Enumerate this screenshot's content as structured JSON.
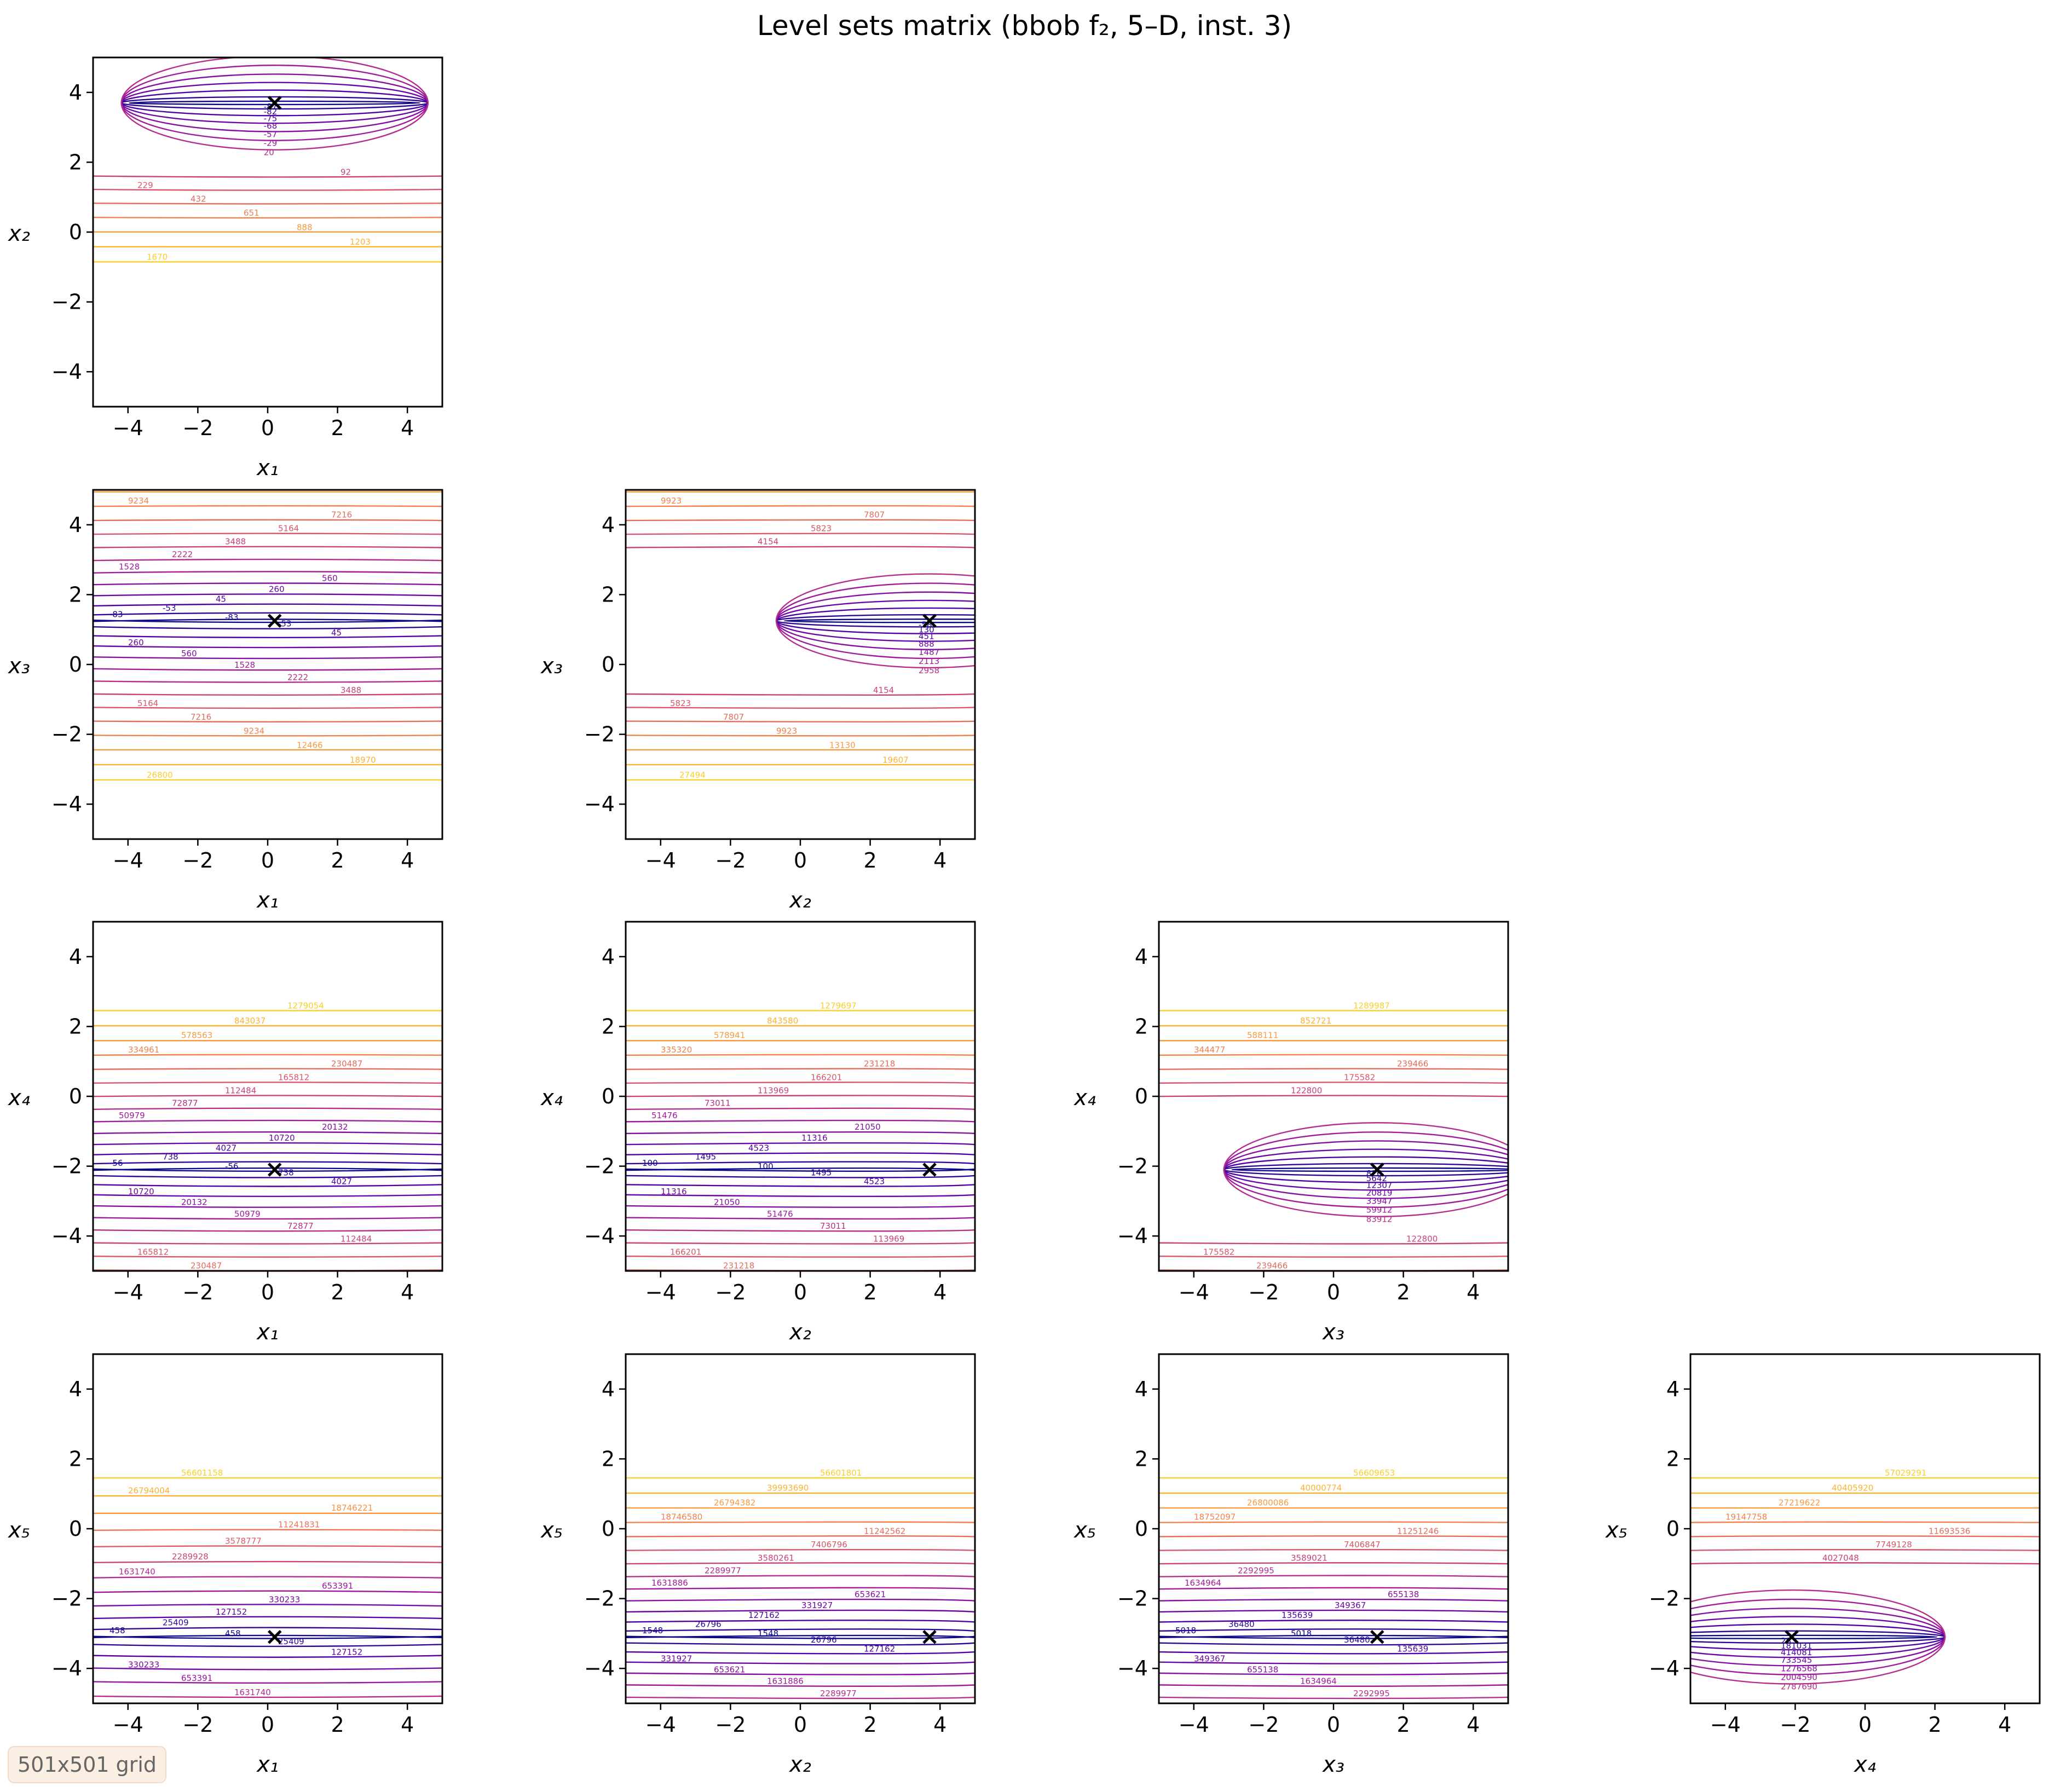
{
  "title": "Level sets matrix (bbob f₂, 5–D, inst. 3)",
  "badge": "501x501 grid",
  "colors": {
    "cmap": [
      "#0d0887",
      "#5c01a6",
      "#9c179e",
      "#cc4778",
      "#ed7953",
      "#fdb42f",
      "#f0f921"
    ],
    "optimum_marker": "#000000"
  },
  "chart_data": [
    {
      "type": "contour",
      "row": 0,
      "col": 0,
      "xlabel": "x1",
      "ylabel": "x2",
      "xlim": [
        -5,
        5
      ],
      "ylim": [
        -5,
        5
      ],
      "xticks": [
        -4,
        -2,
        0,
        2,
        4
      ],
      "yticks": [
        -4,
        -2,
        0,
        2,
        4
      ],
      "optimum": [
        0.2,
        3.7
      ],
      "contours": "ellipses",
      "levels": [
        -87,
        -82,
        -75,
        -68,
        -57,
        -29,
        20,
        92,
        229,
        432,
        651,
        888,
        1203,
        1670
      ]
    },
    {
      "type": "contour",
      "row": 1,
      "col": 0,
      "xlabel": "x1",
      "ylabel": "x3",
      "xlim": [
        -5,
        5
      ],
      "ylim": [
        -5,
        5
      ],
      "xticks": [
        -4,
        -2,
        0,
        2,
        4
      ],
      "yticks": [
        -4,
        -2,
        0,
        2,
        4
      ],
      "optimum": [
        0.2,
        1.25
      ],
      "contours": "lines",
      "levels": [
        -83,
        -53,
        45,
        260,
        560,
        1528,
        2222,
        3488,
        5164,
        7216,
        9234,
        12466,
        18970,
        26800
      ]
    },
    {
      "type": "contour",
      "row": 1,
      "col": 1,
      "xlabel": "x2",
      "ylabel": "x3",
      "xlim": [
        -5,
        5
      ],
      "ylim": [
        -5,
        5
      ],
      "xticks": [
        -4,
        -2,
        0,
        2,
        4
      ],
      "yticks": [
        -4,
        -2,
        0,
        2,
        4
      ],
      "optimum": [
        3.7,
        1.25
      ],
      "contours": "ellipses",
      "levels": [
        -58,
        130,
        451,
        888,
        1487,
        2113,
        2958,
        4154,
        5823,
        7807,
        9923,
        13130,
        19607,
        27494
      ]
    },
    {
      "type": "contour",
      "row": 2,
      "col": 0,
      "xlabel": "x1",
      "ylabel": "x4",
      "xlim": [
        -5,
        5
      ],
      "ylim": [
        -5,
        5
      ],
      "xticks": [
        -4,
        -2,
        0,
        2,
        4
      ],
      "yticks": [
        -4,
        -2,
        0,
        2,
        4
      ],
      "optimum": [
        0.2,
        -2.1
      ],
      "contours": "lines",
      "levels": [
        -56,
        738,
        4027,
        10720,
        20132,
        50979,
        72877,
        112484,
        165812,
        230487,
        334961,
        578563,
        843037,
        1279054
      ]
    },
    {
      "type": "contour",
      "row": 2,
      "col": 1,
      "xlabel": "x2",
      "ylabel": "x4",
      "xlim": [
        -5,
        5
      ],
      "ylim": [
        -5,
        5
      ],
      "xticks": [
        -4,
        -2,
        0,
        2,
        4
      ],
      "yticks": [
        -4,
        -2,
        0,
        2,
        4
      ],
      "optimum": [
        3.7,
        -2.1
      ],
      "contours": "lines",
      "levels": [
        100,
        1495,
        4523,
        11316,
        21050,
        51476,
        73011,
        113969,
        166201,
        231218,
        335320,
        578941,
        843580,
        1279697
      ]
    },
    {
      "type": "contour",
      "row": 2,
      "col": 2,
      "xlabel": "x3",
      "ylabel": "x4",
      "xlim": [
        -5,
        5
      ],
      "ylim": [
        -5,
        5
      ],
      "xticks": [
        -4,
        -2,
        0,
        2,
        4
      ],
      "yticks": [
        -4,
        -2,
        0,
        2,
        4
      ],
      "optimum": [
        1.25,
        -2.1
      ],
      "contours": "ellipses",
      "levels": [
        826,
        5642,
        12307,
        20819,
        33947,
        59912,
        83912,
        122800,
        175582,
        239466,
        344477,
        588111,
        852721,
        1289987
      ]
    },
    {
      "type": "contour",
      "row": 3,
      "col": 0,
      "xlabel": "x1",
      "ylabel": "x5",
      "xlim": [
        -5,
        5
      ],
      "ylim": [
        -5,
        5
      ],
      "xticks": [
        -4,
        -2,
        0,
        2,
        4
      ],
      "yticks": [
        -4,
        -2,
        0,
        2,
        4
      ],
      "optimum": [
        0.2,
        -3.1
      ],
      "contours": "lines",
      "levels": [
        458,
        25409,
        127152,
        330233,
        653391,
        1631740,
        2289928,
        3578777,
        11241831,
        18746221,
        26794004,
        56601158
      ]
    },
    {
      "type": "contour",
      "row": 3,
      "col": 1,
      "xlabel": "x2",
      "ylabel": "x5",
      "xlim": [
        -5,
        5
      ],
      "ylim": [
        -5,
        5
      ],
      "xticks": [
        -4,
        -2,
        0,
        2,
        4
      ],
      "yticks": [
        -4,
        -2,
        0,
        2,
        4
      ],
      "optimum": [
        3.7,
        -3.1
      ],
      "contours": "lines",
      "levels": [
        1548,
        26796,
        127162,
        331927,
        653621,
        1631886,
        2289977,
        3580261,
        7406796,
        11242562,
        18746580,
        26794382,
        39993690,
        56601801
      ]
    },
    {
      "type": "contour",
      "row": 3,
      "col": 2,
      "xlabel": "x3",
      "ylabel": "x5",
      "xlim": [
        -5,
        5
      ],
      "ylim": [
        -5,
        5
      ],
      "xticks": [
        -4,
        -2,
        0,
        2,
        4
      ],
      "yticks": [
        -4,
        -2,
        0,
        2,
        4
      ],
      "optimum": [
        1.25,
        -3.1
      ],
      "contours": "lines",
      "levels": [
        5018,
        36480,
        135639,
        349367,
        655138,
        1634964,
        2292995,
        3589021,
        7406847,
        11251246,
        18752097,
        26800086,
        40000774,
        56609653
      ]
    },
    {
      "type": "contour",
      "row": 3,
      "col": 3,
      "xlabel": "x4",
      "ylabel": "x5",
      "xlim": [
        -5,
        5
      ],
      "ylim": [
        -5,
        5
      ],
      "xticks": [
        -4,
        -2,
        0,
        2,
        4
      ],
      "yticks": [
        -4,
        -2,
        0,
        2,
        4
      ],
      "optimum": [
        -2.1,
        -3.1
      ],
      "contours": "ellipses",
      "levels": [
        28,
        181031,
        414081,
        733545,
        1276568,
        2004590,
        2787690,
        4027048,
        7749128,
        11693536,
        19147758,
        27219622,
        40405920,
        57029291
      ]
    }
  ]
}
